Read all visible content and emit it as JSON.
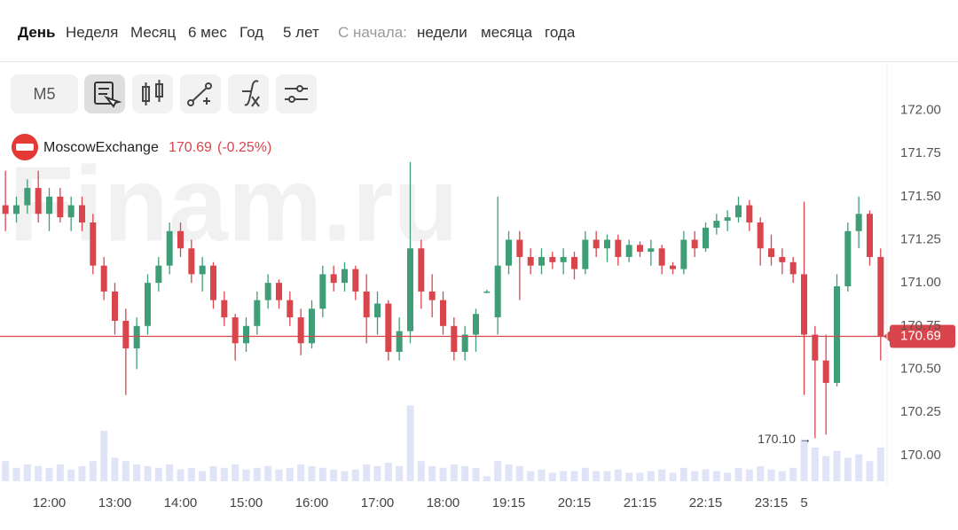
{
  "toolbar": {
    "periods": [
      "День",
      "Неделя",
      "Месяц",
      "6 мес",
      "Год",
      "5 лет"
    ],
    "since_label": "С начала:",
    "since_options": [
      "недели",
      "месяца",
      "года"
    ],
    "interval": "M5"
  },
  "chart_data": {
    "type": "candlestick",
    "instrument": "MoscowExchange",
    "price_text": "170.69",
    "change_text": "(-0.25%)",
    "watermark": "Finam.ru",
    "annotation": "170.10 →",
    "up_color": "#3f9e78",
    "down_color": "#d9454d",
    "volume_color": "#dfe5f7",
    "grid": true,
    "ylim": [
      169.85,
      172.28
    ],
    "yticks": [
      {
        "value": 170,
        "label": "170.00"
      },
      170.25,
      {
        "value": 170.5,
        "label": "170.50"
      },
      170.75,
      {
        "value": 171,
        "label": "171.00"
      },
      171.25,
      {
        "value": 171.5,
        "label": "171.50"
      },
      171.75,
      {
        "value": 172,
        "label": "172.00"
      }
    ],
    "xticks": [
      {
        "value": 4,
        "label": "12:00"
      },
      {
        "value": 10,
        "label": "13:00"
      },
      {
        "value": 16,
        "label": "14:00"
      },
      {
        "value": 22,
        "label": "15:00"
      },
      {
        "value": 28,
        "label": "16:00"
      },
      {
        "value": 34,
        "label": "17:00"
      },
      {
        "value": 40,
        "label": "18:00"
      },
      {
        "value": 46,
        "label": "19:15"
      },
      {
        "value": 52,
        "label": "20:15"
      },
      {
        "value": 58,
        "label": "21:15"
      },
      {
        "value": 64,
        "label": "22:15"
      },
      {
        "value": 70,
        "label": "23:15"
      },
      {
        "value": 73,
        "label": "5"
      }
    ],
    "last_price": 170.69,
    "volume_lim": [
      0,
      50
    ],
    "open": [
      171.45,
      171.4,
      171.45,
      171.55,
      171.4,
      171.5,
      171.38,
      171.45,
      171.35,
      171.1,
      170.95,
      170.78,
      170.62,
      170.75,
      171.0,
      171.1,
      171.3,
      171.2,
      171.05,
      171.1,
      170.9,
      170.8,
      170.65,
      170.75,
      170.9,
      171.0,
      170.9,
      170.8,
      170.65,
      170.85,
      171.05,
      171.0,
      171.08,
      170.95,
      170.8,
      170.88,
      170.6,
      170.72,
      171.2,
      170.95,
      170.9,
      170.75,
      170.6,
      170.7,
      170.95,
      170.8,
      171.1,
      171.25,
      171.15,
      171.1,
      171.15,
      171.12,
      171.15,
      171.08,
      171.25,
      171.2,
      171.25,
      171.15,
      171.22,
      171.18,
      171.2,
      171.1,
      171.08,
      171.25,
      171.2,
      171.32,
      171.36,
      171.38,
      171.45,
      171.35,
      171.2,
      171.15,
      171.12,
      171.05,
      170.7,
      170.55,
      170.42,
      170.98,
      171.3,
      171.4,
      171.15
    ],
    "high": [
      171.65,
      171.5,
      171.6,
      171.65,
      171.55,
      171.55,
      171.5,
      171.5,
      171.4,
      171.15,
      171.0,
      170.85,
      170.8,
      171.05,
      171.15,
      171.35,
      171.35,
      171.25,
      171.15,
      171.12,
      170.95,
      170.82,
      170.8,
      170.95,
      171.05,
      171.02,
      170.95,
      170.85,
      170.9,
      171.1,
      171.1,
      171.12,
      171.1,
      171.05,
      170.95,
      170.9,
      170.8,
      171.7,
      171.25,
      171.05,
      170.95,
      170.8,
      170.75,
      170.85,
      170.96,
      171.5,
      171.3,
      171.3,
      171.2,
      171.2,
      171.18,
      171.2,
      171.18,
      171.3,
      171.3,
      171.28,
      171.28,
      171.25,
      171.24,
      171.25,
      171.22,
      171.12,
      171.3,
      171.3,
      171.35,
      171.4,
      171.42,
      171.5,
      171.48,
      171.38,
      171.28,
      171.2,
      171.15,
      171.47,
      170.75,
      170.7,
      171.05,
      171.35,
      171.5,
      171.42,
      171.2
    ],
    "low": [
      171.3,
      171.35,
      171.4,
      171.35,
      171.3,
      171.35,
      171.3,
      171.3,
      171.05,
      170.9,
      170.7,
      170.35,
      170.5,
      170.7,
      170.95,
      171.05,
      171.15,
      171.0,
      170.95,
      170.85,
      170.75,
      170.55,
      170.6,
      170.7,
      170.85,
      170.85,
      170.75,
      170.58,
      170.62,
      170.8,
      170.95,
      170.95,
      170.9,
      170.65,
      170.7,
      170.55,
      170.55,
      170.65,
      170.85,
      170.8,
      170.7,
      170.55,
      170.55,
      170.6,
      170.94,
      170.7,
      171.05,
      170.9,
      171.05,
      171.05,
      171.08,
      171.05,
      171.02,
      171.05,
      171.15,
      171.12,
      171.1,
      171.12,
      171.15,
      171.1,
      171.05,
      171.05,
      171.05,
      171.15,
      171.18,
      171.28,
      171.3,
      171.35,
      171.3,
      171.1,
      171.1,
      171.05,
      171.0,
      170.35,
      170.1,
      170.12,
      170.4,
      170.95,
      171.2,
      171.1,
      170.55
    ],
    "close": [
      171.4,
      171.45,
      171.55,
      171.4,
      171.5,
      171.38,
      171.45,
      171.35,
      171.1,
      170.95,
      170.78,
      170.62,
      170.75,
      171.0,
      171.1,
      171.3,
      171.2,
      171.05,
      171.1,
      170.9,
      170.8,
      170.65,
      170.75,
      170.9,
      171.0,
      170.9,
      170.8,
      170.65,
      170.85,
      171.05,
      171.0,
      171.08,
      170.95,
      170.8,
      170.88,
      170.6,
      170.72,
      171.2,
      170.95,
      170.9,
      170.75,
      170.6,
      170.7,
      170.82,
      170.95,
      171.1,
      171.25,
      171.15,
      171.1,
      171.15,
      171.12,
      171.15,
      171.08,
      171.25,
      171.2,
      171.25,
      171.15,
      171.22,
      171.18,
      171.2,
      171.1,
      171.08,
      171.25,
      171.2,
      171.32,
      171.36,
      171.38,
      171.45,
      171.35,
      171.2,
      171.15,
      171.12,
      171.05,
      170.7,
      170.55,
      170.42,
      170.98,
      171.3,
      171.4,
      171.15,
      170.69
    ],
    "volume": [
      12,
      8,
      10,
      9,
      8,
      10,
      7,
      9,
      12,
      30,
      14,
      12,
      10,
      9,
      8,
      10,
      7,
      8,
      6,
      9,
      8,
      10,
      7,
      8,
      9,
      7,
      8,
      10,
      9,
      8,
      7,
      6,
      7,
      10,
      9,
      11,
      9,
      45,
      12,
      9,
      8,
      10,
      9,
      8,
      3,
      12,
      10,
      9,
      6,
      7,
      5,
      6,
      6,
      8,
      6,
      6,
      7,
      5,
      5,
      6,
      7,
      5,
      8,
      6,
      7,
      6,
      5,
      8,
      7,
      9,
      7,
      6,
      8,
      25,
      20,
      15,
      18,
      14,
      16,
      12,
      20
    ]
  }
}
